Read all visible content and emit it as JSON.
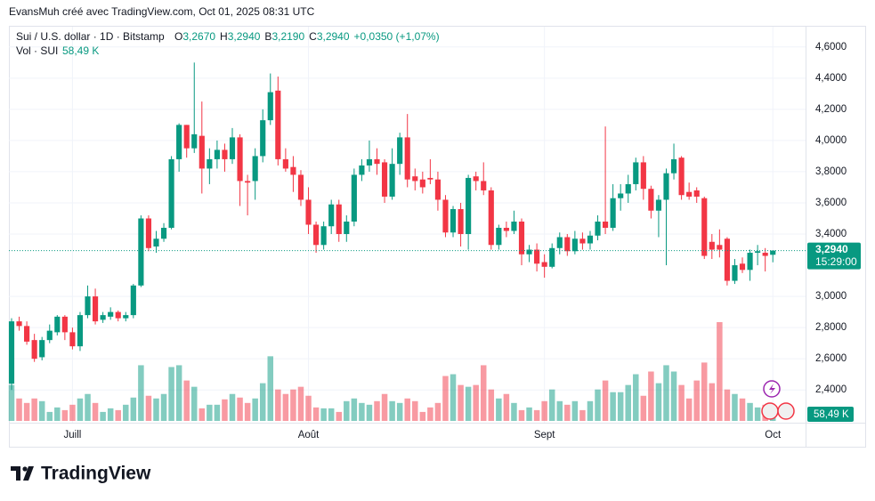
{
  "header": {
    "attribution": "EvansMuh créé avec TradingView.com, Oct 01, 2025 08:31 UTC",
    "symbol": "Sui / U.S. dollar · 1D · Bitstamp",
    "ohlc": [
      {
        "key": "O",
        "value": "3,2670"
      },
      {
        "key": "H",
        "value": "3,2940"
      },
      {
        "key": "B",
        "value": "3,2190"
      },
      {
        "key": "C",
        "value": "3,2940"
      }
    ],
    "change": "+0,0350 (+1,07%)",
    "volume_title": "Vol · SUI",
    "volume": "58,49 K",
    "countdown": "15:29:00"
  },
  "logo": "TradingView",
  "chart_data": {
    "type": "candlestick",
    "up_color": "#089981",
    "down_color": "#f23645",
    "grid": true,
    "xlim": [
      -0.35,
      104.3
    ],
    "xticks": [
      {
        "value": 8,
        "label": "Juill"
      },
      {
        "value": 39,
        "label": "Août"
      },
      {
        "value": 70,
        "label": "Sept"
      },
      {
        "value": 100,
        "label": "Oct"
      }
    ],
    "ylim": [
      2.19,
      4.73
    ],
    "yticks": [
      {
        "value": 2.4,
        "label": "2,4000"
      },
      {
        "value": 2.6,
        "label": "2,6000"
      },
      {
        "value": 2.8,
        "label": "2,8000"
      },
      {
        "value": 3.0,
        "label": "3,0000"
      },
      {
        "value": 3.4,
        "label": "3,4000"
      },
      {
        "value": 3.6,
        "label": "3,6000"
      },
      {
        "value": 3.8,
        "label": "3,8000"
      },
      {
        "value": 4.0,
        "label": "4,0000"
      },
      {
        "value": 4.2,
        "label": "4,2000"
      },
      {
        "value": 4.4,
        "label": "4,4000"
      },
      {
        "value": 4.6,
        "label": "4,6000"
      }
    ],
    "open": [
      2.44,
      2.84,
      2.81,
      2.72,
      2.61,
      2.72,
      2.77,
      2.87,
      2.77,
      2.68,
      2.88,
      3.0,
      2.85,
      2.87,
      2.9,
      2.86,
      2.88,
      3.07,
      3.5,
      3.32,
      3.37,
      3.44,
      3.88,
      4.1,
      3.95,
      4.03,
      3.82,
      3.88,
      3.94,
      3.88,
      4.02,
      3.74,
      3.74,
      3.9,
      4.13,
      4.32,
      3.88,
      3.83,
      3.78,
      3.62,
      3.46,
      3.33,
      3.45,
      3.59,
      3.4,
      3.48,
      3.78,
      3.84,
      3.88,
      3.86,
      3.64,
      3.85,
      4.02,
      3.77,
      3.75,
      3.76,
      3.75,
      3.62,
      3.41,
      3.56,
      3.4,
      3.77,
      3.74,
      3.68,
      3.33,
      3.44,
      3.42,
      3.48,
      3.27,
      3.3,
      3.22,
      3.19,
      3.31,
      3.38,
      3.29,
      3.37,
      3.34,
      3.39,
      3.48,
      3.44,
      3.63,
      3.66,
      3.72,
      3.86,
      3.69,
      3.55,
      3.62,
      3.79,
      3.89,
      3.67,
      3.68,
      3.63,
      3.35,
      3.33,
      3.37,
      3.1,
      3.21,
      3.17,
      3.28,
      3.28,
      3.267
    ],
    "high": [
      2.86,
      2.87,
      2.84,
      2.76,
      2.74,
      2.82,
      2.88,
      2.88,
      2.8,
      2.9,
      3.07,
      3.05,
      2.9,
      2.93,
      2.91,
      2.9,
      3.08,
      3.52,
      3.52,
      3.42,
      3.47,
      3.9,
      4.11,
      4.1,
      4.5,
      4.25,
      3.95,
      4.0,
      3.98,
      4.08,
      4.04,
      3.78,
      3.95,
      4.2,
      4.43,
      4.41,
      3.95,
      3.9,
      3.81,
      3.7,
      3.48,
      3.48,
      3.62,
      3.62,
      3.52,
      3.82,
      3.88,
      4.0,
      3.95,
      3.88,
      3.95,
      4.05,
      4.17,
      3.82,
      3.8,
      3.88,
      3.8,
      3.65,
      3.58,
      3.6,
      3.78,
      3.8,
      3.86,
      3.7,
      3.46,
      3.48,
      3.55,
      3.5,
      3.33,
      3.34,
      3.27,
      3.34,
      3.41,
      3.4,
      3.42,
      3.41,
      3.42,
      3.52,
      4.09,
      3.72,
      3.72,
      3.78,
      3.89,
      3.9,
      3.71,
      3.65,
      3.82,
      3.98,
      3.9,
      3.73,
      3.7,
      3.64,
      3.4,
      3.43,
      3.38,
      3.24,
      3.25,
      3.3,
      3.33,
      3.31,
      3.294
    ],
    "low": [
      2.4,
      2.78,
      2.69,
      2.58,
      2.59,
      2.7,
      2.75,
      2.72,
      2.66,
      2.65,
      2.86,
      2.82,
      2.83,
      2.85,
      2.84,
      2.84,
      2.86,
      3.06,
      3.29,
      3.28,
      3.35,
      3.43,
      3.8,
      3.89,
      3.92,
      3.66,
      3.72,
      3.82,
      3.8,
      3.85,
      3.58,
      3.52,
      3.62,
      3.86,
      4.1,
      3.84,
      3.8,
      3.67,
      3.58,
      3.4,
      3.28,
      3.3,
      3.4,
      3.35,
      3.35,
      3.45,
      3.74,
      3.8,
      3.78,
      3.6,
      3.62,
      3.78,
      3.7,
      3.68,
      3.66,
      3.72,
      3.55,
      3.38,
      3.38,
      3.32,
      3.3,
      3.68,
      3.65,
      3.3,
      3.3,
      3.38,
      3.4,
      3.2,
      3.22,
      3.16,
      3.12,
      3.18,
      3.27,
      3.26,
      3.27,
      3.3,
      3.3,
      3.36,
      3.4,
      3.42,
      3.55,
      3.6,
      3.68,
      3.62,
      3.5,
      3.38,
      3.2,
      3.75,
      3.62,
      3.62,
      3.6,
      3.24,
      3.24,
      3.25,
      3.07,
      3.08,
      3.15,
      3.1,
      3.2,
      3.16,
      3.219
    ],
    "close": [
      2.84,
      2.81,
      2.71,
      2.6,
      2.72,
      2.78,
      2.87,
      2.77,
      2.68,
      2.88,
      3.0,
      2.84,
      2.88,
      2.9,
      2.86,
      2.88,
      3.07,
      3.5,
      3.31,
      3.37,
      3.44,
      3.88,
      4.1,
      3.95,
      4.04,
      3.82,
      3.88,
      3.94,
      3.88,
      4.02,
      3.74,
      3.73,
      3.9,
      4.13,
      4.31,
      3.88,
      3.82,
      3.78,
      3.62,
      3.46,
      3.33,
      3.45,
      3.59,
      3.4,
      3.48,
      3.78,
      3.84,
      3.88,
      3.85,
      3.64,
      3.85,
      4.02,
      3.75,
      3.74,
      3.7,
      3.75,
      3.62,
      3.41,
      3.56,
      3.4,
      3.76,
      3.74,
      3.68,
      3.33,
      3.44,
      3.42,
      3.48,
      3.27,
      3.3,
      3.21,
      3.19,
      3.31,
      3.38,
      3.29,
      3.37,
      3.34,
      3.39,
      3.48,
      3.44,
      3.63,
      3.66,
      3.72,
      3.86,
      3.69,
      3.55,
      3.62,
      3.79,
      3.88,
      3.65,
      3.64,
      3.64,
      3.26,
      3.3,
      3.3,
      3.1,
      3.2,
      3.17,
      3.28,
      3.29,
      3.26,
      3.294
    ],
    "volume": [
      160,
      100,
      80,
      100,
      88,
      40,
      60,
      48,
      72,
      100,
      120,
      80,
      40,
      56,
      48,
      72,
      104,
      248,
      112,
      100,
      120,
      240,
      248,
      180,
      152,
      56,
      72,
      72,
      96,
      120,
      104,
      80,
      100,
      168,
      288,
      140,
      120,
      140,
      152,
      112,
      60,
      56,
      56,
      40,
      88,
      100,
      80,
      72,
      88,
      120,
      88,
      80,
      100,
      88,
      40,
      60,
      80,
      200,
      208,
      160,
      152,
      160,
      248,
      140,
      100,
      120,
      80,
      48,
      60,
      48,
      88,
      140,
      88,
      72,
      88,
      48,
      88,
      140,
      180,
      128,
      128,
      160,
      208,
      112,
      220,
      168,
      248,
      220,
      160,
      100,
      180,
      260,
      168,
      440,
      140,
      120,
      100,
      80,
      60,
      72,
      58.49
    ]
  }
}
